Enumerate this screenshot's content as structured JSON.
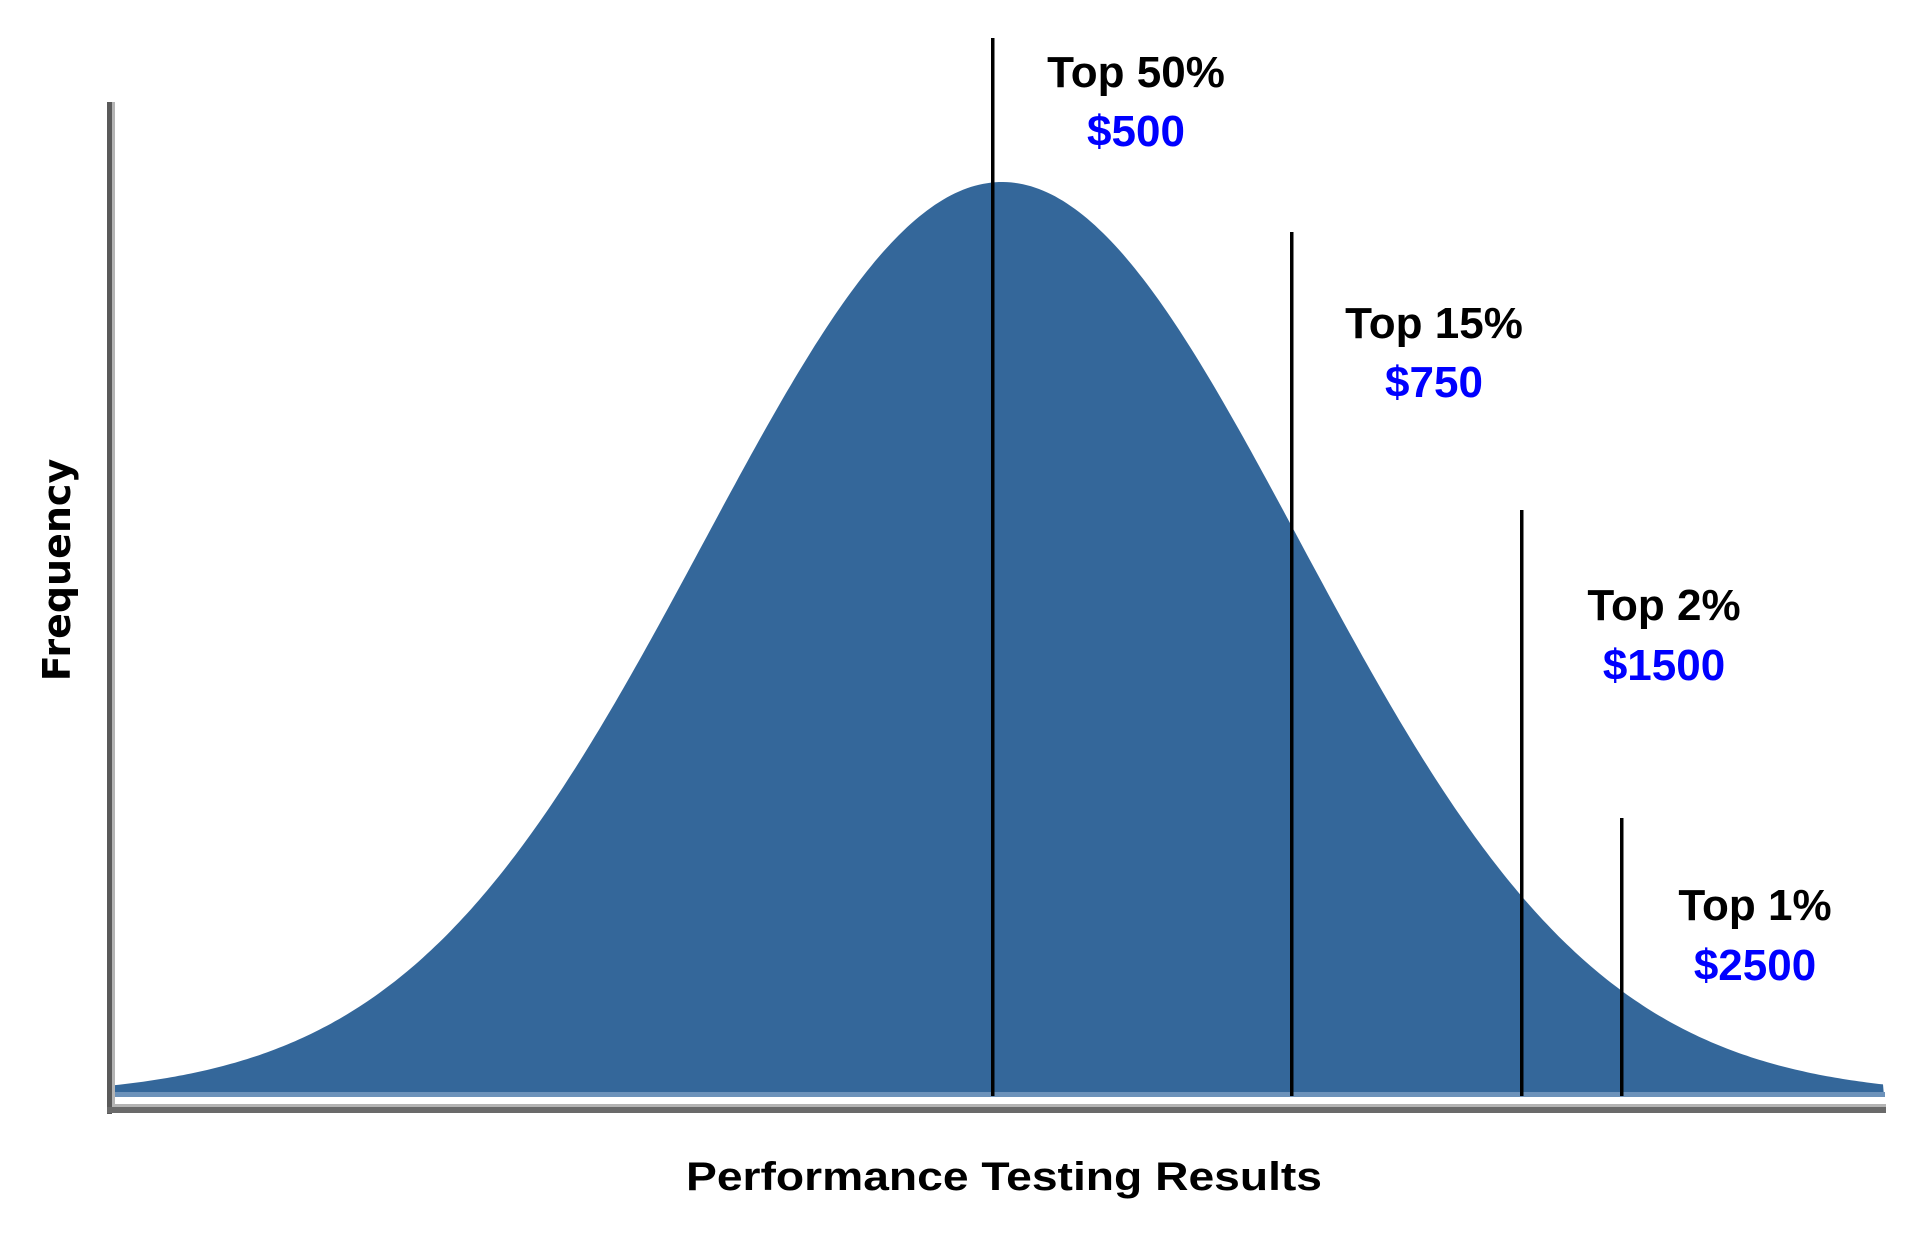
{
  "chart_data": {
    "type": "area",
    "title": "",
    "xlabel": "Performance Testing Results",
    "ylabel": "Frequency",
    "distribution": "normal (bell curve)",
    "fill_color": "#34679A",
    "grid": false,
    "legend": null,
    "x_ticks": [],
    "y_ticks": [],
    "thresholds": [
      {
        "label": "Top 50%",
        "value": "$500",
        "percentile": 50
      },
      {
        "label": "Top 15%",
        "value": "$750",
        "percentile": 85
      },
      {
        "label": "Top 2%",
        "value": "$1500",
        "percentile": 98
      },
      {
        "label": "Top 1%",
        "value": "$2500",
        "percentile": 99
      }
    ],
    "annotation_value_color": "#0000FF"
  },
  "axes": {
    "x_label": "Performance Testing Results",
    "y_label": "Frequency"
  },
  "markers": [
    {
      "tier": "Top 50%",
      "reward": "$500"
    },
    {
      "tier": "Top 15%",
      "reward": "$750"
    },
    {
      "tier": "Top 2%",
      "reward": "$1500"
    },
    {
      "tier": "Top 1%",
      "reward": "$2500"
    }
  ],
  "colors": {
    "curve": "#34679A",
    "curve_base": "#6C92BA",
    "reward_text": "#0000FF",
    "tier_text": "#000000",
    "axis_dark": "#5A5A5A",
    "axis_light": "#B4B4B4"
  }
}
